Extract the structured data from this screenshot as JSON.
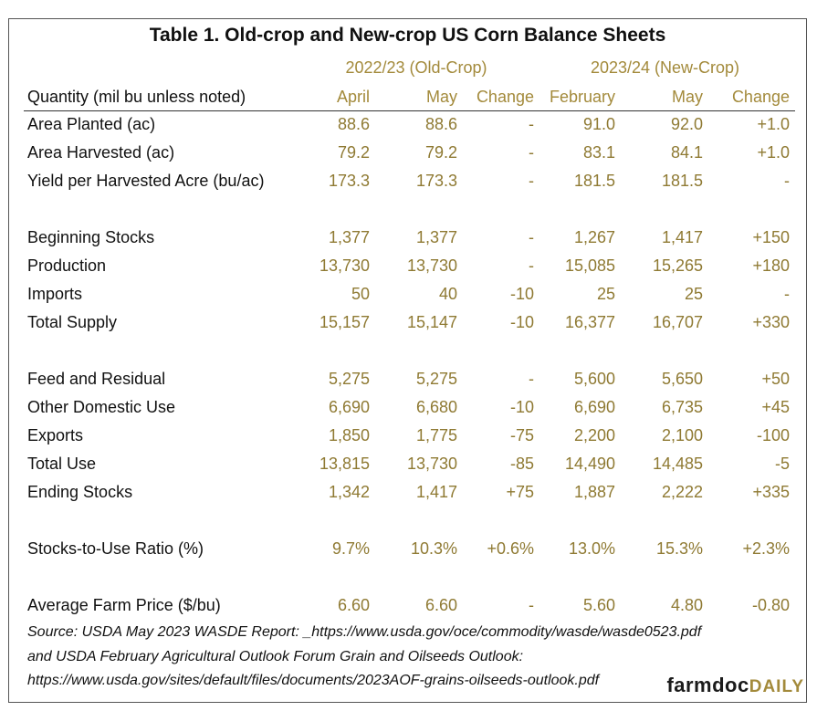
{
  "title": "Table 1. Old-crop and New-crop US Corn Balance Sheets",
  "groups": {
    "old_crop": "2022/23 (Old-Crop)",
    "new_crop": "2023/24 (New-Crop)"
  },
  "headers": [
    "Quantity (mil bu unless noted)",
    "April",
    "May",
    "Change",
    "February",
    "May",
    "Change"
  ],
  "rows": [
    {
      "label": "Area Planted (ac)",
      "values": [
        "88.6",
        "88.6",
        "-",
        "91.0",
        "92.0",
        "+1.0"
      ]
    },
    {
      "label": "Area Harvested (ac)",
      "values": [
        "79.2",
        "79.2",
        "-",
        "83.1",
        "84.1",
        "+1.0"
      ]
    },
    {
      "label": "Yield per Harvested Acre (bu/ac)",
      "values": [
        "173.3",
        "173.3",
        "-",
        "181.5",
        "181.5",
        "-"
      ]
    },
    {
      "label": "Beginning Stocks",
      "values": [
        "1,377",
        "1,377",
        "-",
        "1,267",
        "1,417",
        "+150"
      ]
    },
    {
      "label": "Production",
      "values": [
        "13,730",
        "13,730",
        "-",
        "15,085",
        "15,265",
        "+180"
      ]
    },
    {
      "label": "Imports",
      "values": [
        "50",
        "40",
        "-10",
        "25",
        "25",
        "-"
      ]
    },
    {
      "label": "Total Supply",
      "values": [
        "15,157",
        "15,147",
        "-10",
        "16,377",
        "16,707",
        "+330"
      ]
    },
    {
      "label": "Feed and Residual",
      "values": [
        "5,275",
        "5,275",
        "-",
        "5,600",
        "5,650",
        "+50"
      ]
    },
    {
      "label": "Other Domestic Use",
      "values": [
        "6,690",
        "6,680",
        "-10",
        "6,690",
        "6,735",
        "+45"
      ]
    },
    {
      "label": "Exports",
      "values": [
        "1,850",
        "1,775",
        "-75",
        "2,200",
        "2,100",
        "-100"
      ]
    },
    {
      "label": "Total Use",
      "values": [
        "13,815",
        "13,730",
        "-85",
        "14,490",
        "14,485",
        "-5"
      ]
    },
    {
      "label": "Ending Stocks",
      "values": [
        "1,342",
        "1,417",
        "+75",
        "1,887",
        "2,222",
        "+335"
      ]
    },
    {
      "label": "Stocks-to-Use Ratio (%)",
      "values": [
        "9.7%",
        "10.3%",
        "+0.6%",
        "13.0%",
        "15.3%",
        "+2.3%"
      ]
    },
    {
      "label": "Average Farm Price ($/bu)",
      "values": [
        "6.60",
        "6.60",
        "-",
        "5.60",
        "4.80",
        "-0.80"
      ]
    }
  ],
  "source": {
    "line1": "Source: USDA May 2023 WASDE Report: _https://www.usda.gov/oce/commodity/wasde/wasde0523.pdf",
    "line2": "and USDA February Agricultural Outlook Forum Grain and Oilseeds Outlook:",
    "line3": "https://www.usda.gov/sites/default/files/documents/2023AOF-grains-oilseeds-outlook.pdf"
  },
  "logo": {
    "part1": "farmdoc",
    "part2": "DAILY"
  }
}
